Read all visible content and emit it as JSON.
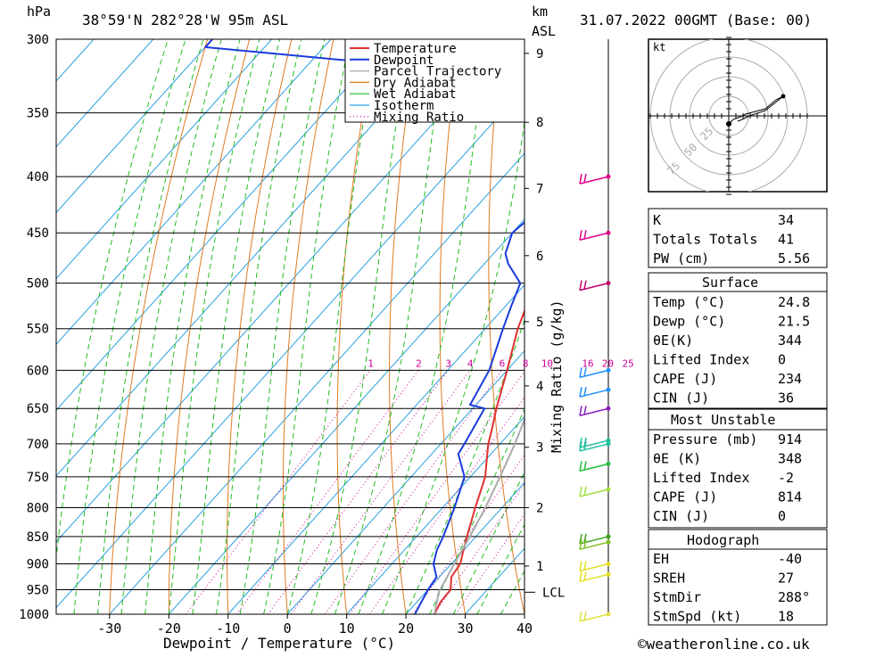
{
  "header": {
    "unit_hpa": "hPa",
    "location": "38°59'N  282°28'W  95m  ASL",
    "km_label": "km",
    "asl_label": "ASL",
    "datetime": "31.07.2022  00GMT  (Base: 00)"
  },
  "chart_data": {
    "type": "line",
    "subtype": "skew-T log-p sounding",
    "xlabel": "Dewpoint / Temperature (°C)",
    "ylabel": "hPa",
    "mixing_ratio_axis_label": "Mixing Ratio (g/kg)",
    "x_ticks": [
      -30,
      -20,
      -10,
      0,
      10,
      20,
      30,
      40
    ],
    "y_ticks": [
      300,
      350,
      400,
      450,
      500,
      550,
      600,
      650,
      700,
      750,
      800,
      850,
      900,
      950,
      1000
    ],
    "ylim": [
      1000,
      300
    ],
    "xlim_at_1000hPa": [
      -39,
      40
    ],
    "km_ticks": [
      {
        "km": 1,
        "p": 904
      },
      {
        "km": 2,
        "p": 800
      },
      {
        "km": 3,
        "p": 705
      },
      {
        "km": 4,
        "p": 620
      },
      {
        "km": 5,
        "p": 542
      },
      {
        "km": 6,
        "p": 472
      },
      {
        "km": 7,
        "p": 410
      },
      {
        "km": 8,
        "p": 357
      },
      {
        "km": 9,
        "p": 309
      }
    ],
    "lcl": {
      "label": "LCL",
      "p": 955
    },
    "mixing_ratio_labels": [
      "1",
      "2",
      "3",
      "4",
      "6",
      "8",
      "10",
      "16",
      "20",
      "25"
    ],
    "mixing_ratio_values": [
      1,
      2,
      3,
      4,
      6,
      8,
      10,
      16,
      20,
      25
    ],
    "legend": [
      "Temperature",
      "Dewpoint",
      "Parcel Trajectory",
      "Dry Adiabat",
      "Wet Adiabat",
      "Isotherm",
      "Mixing Ratio"
    ],
    "colors": {
      "temperature": "#e03030",
      "dewpoint": "#1a3adb",
      "parcel": "#aaaaaa",
      "dry_adiabat": "#e07a20",
      "wet_adiabat": "#22bb22",
      "isotherm": "#2aa0e0",
      "mixing_ratio": "#cc0099"
    },
    "series": [
      {
        "name": "Temperature",
        "points": [
          {
            "p": 1000,
            "t": 24.8
          },
          {
            "p": 975,
            "t": 24
          },
          {
            "p": 950,
            "t": 23.8
          },
          {
            "p": 925,
            "t": 22
          },
          {
            "p": 900,
            "t": 21.5
          },
          {
            "p": 875,
            "t": 20
          },
          {
            "p": 850,
            "t": 18.5
          },
          {
            "p": 800,
            "t": 15.5
          },
          {
            "p": 750,
            "t": 12.5
          },
          {
            "p": 700,
            "t": 8
          },
          {
            "p": 680,
            "t": 6.5
          },
          {
            "p": 650,
            "t": 4
          },
          {
            "p": 600,
            "t": 0
          },
          {
            "p": 550,
            "t": -4.5
          },
          {
            "p": 500,
            "t": -8.5
          },
          {
            "p": 475,
            "t": -12
          },
          {
            "p": 450,
            "t": -14.5
          },
          {
            "p": 425,
            "t": -16
          },
          {
            "p": 400,
            "t": -21
          },
          {
            "p": 380,
            "t": -25
          },
          {
            "p": 360,
            "t": -29
          }
        ]
      },
      {
        "name": "Dewpoint",
        "points": [
          {
            "p": 1000,
            "t": 21.5
          },
          {
            "p": 950,
            "t": 20
          },
          {
            "p": 925,
            "t": 19.5
          },
          {
            "p": 900,
            "t": 17
          },
          {
            "p": 875,
            "t": 15.5
          },
          {
            "p": 850,
            "t": 14.5
          },
          {
            "p": 800,
            "t": 12
          },
          {
            "p": 750,
            "t": 9
          },
          {
            "p": 715,
            "t": 4.5
          },
          {
            "p": 700,
            "t": 4
          },
          {
            "p": 650,
            "t": 2
          },
          {
            "p": 645,
            "t": -1
          },
          {
            "p": 600,
            "t": -3
          },
          {
            "p": 550,
            "t": -7
          },
          {
            "p": 525,
            "t": -9
          },
          {
            "p": 500,
            "t": -11
          },
          {
            "p": 480,
            "t": -16
          },
          {
            "p": 470,
            "t": -18
          },
          {
            "p": 450,
            "t": -20
          },
          {
            "p": 430,
            "t": -19
          },
          {
            "p": 400,
            "t": -24
          },
          {
            "p": 380,
            "t": -27
          },
          {
            "p": 360,
            "t": -30
          },
          {
            "p": 352,
            "t": -28
          },
          {
            "p": 343,
            "t": -33
          },
          {
            "p": 325,
            "t": -45
          },
          {
            "p": 315,
            "t": -70
          },
          {
            "p": 305,
            "t": -100
          },
          {
            "p": 300,
            "t": -100
          }
        ]
      },
      {
        "name": "Parcel Trajectory",
        "points": [
          {
            "p": 1000,
            "t": 24.8
          },
          {
            "p": 955,
            "t": 22.2
          },
          {
            "p": 900,
            "t": 20.5
          },
          {
            "p": 850,
            "t": 19
          },
          {
            "p": 800,
            "t": 17.2
          },
          {
            "p": 750,
            "t": 15
          },
          {
            "p": 700,
            "t": 12.5
          },
          {
            "p": 650,
            "t": 9.5
          },
          {
            "p": 600,
            "t": 6
          },
          {
            "p": 550,
            "t": 2
          },
          {
            "p": 500,
            "t": -3
          },
          {
            "p": 450,
            "t": -9
          },
          {
            "p": 400,
            "t": -16
          },
          {
            "p": 350,
            "t": -25
          },
          {
            "p": 300,
            "t": -36
          }
        ]
      }
    ],
    "wind_barbs": [
      {
        "p": 400,
        "color": "#e0008a"
      },
      {
        "p": 450,
        "color": "#e0008a"
      },
      {
        "p": 500,
        "color": "#c0006a"
      },
      {
        "p": 600,
        "color": "#1e90ff"
      },
      {
        "p": 625,
        "color": "#1e90ff"
      },
      {
        "p": 650,
        "color": "#8a1ec0"
      },
      {
        "p": 695,
        "color": "#20c0a0"
      },
      {
        "p": 700,
        "color": "#20c0a0"
      },
      {
        "p": 730,
        "color": "#20c040"
      },
      {
        "p": 770,
        "color": "#a0e040"
      },
      {
        "p": 850,
        "color": "#40a020"
      },
      {
        "p": 860,
        "color": "#80c020"
      },
      {
        "p": 900,
        "color": "#e0e020"
      },
      {
        "p": 920,
        "color": "#e0e020"
      },
      {
        "p": 1000,
        "color": "#e0e040"
      }
    ]
  },
  "hodograph": {
    "unit": "kt",
    "ring_labels": [
      "25",
      "50",
      "75"
    ]
  },
  "indices": {
    "rows": [
      {
        "label": "K",
        "value": "34"
      },
      {
        "label": "Totals Totals",
        "value": "41"
      },
      {
        "label": "PW (cm)",
        "value": "5.56"
      }
    ]
  },
  "surface": {
    "title": "Surface",
    "rows": [
      {
        "label": "Temp (°C)",
        "value": "24.8"
      },
      {
        "label": "Dewp (°C)",
        "value": "21.5"
      },
      {
        "label": "θE(K)",
        "value": "344"
      },
      {
        "label": "Lifted Index",
        "value": "0"
      },
      {
        "label": "CAPE (J)",
        "value": "234"
      },
      {
        "label": "CIN (J)",
        "value": "36"
      }
    ]
  },
  "most_unstable": {
    "title": "Most Unstable",
    "rows": [
      {
        "label": "Pressure (mb)",
        "value": "914"
      },
      {
        "label": "θE (K)",
        "value": "348"
      },
      {
        "label": "Lifted Index",
        "value": "-2"
      },
      {
        "label": "CAPE (J)",
        "value": "814"
      },
      {
        "label": "CIN (J)",
        "value": "0"
      }
    ]
  },
  "hodo_table": {
    "title": "Hodograph",
    "rows": [
      {
        "label": "EH",
        "value": "-40"
      },
      {
        "label": "SREH",
        "value": "27"
      },
      {
        "label": "StmDir",
        "value": "288°"
      },
      {
        "label": "StmSpd (kt)",
        "value": "18"
      }
    ]
  },
  "footer": {
    "copyright": "©weatheronline.co.uk"
  }
}
